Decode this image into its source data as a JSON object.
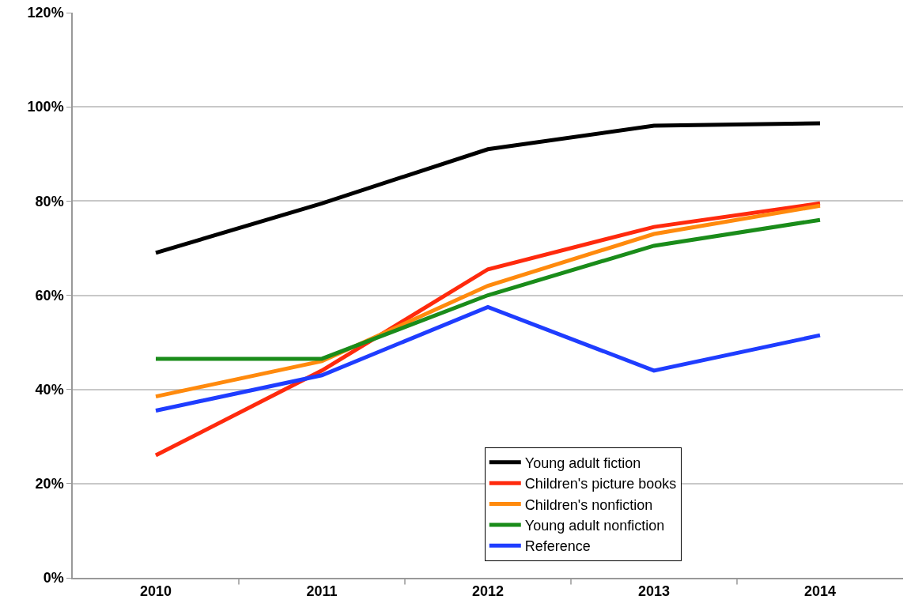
{
  "chart_data": {
    "type": "line",
    "categories": [
      "2010",
      "2011",
      "2012",
      "2013",
      "2014"
    ],
    "series": [
      {
        "name": "Young adult fiction",
        "color": "#000000",
        "values": [
          69,
          79.5,
          91,
          96,
          96.5
        ]
      },
      {
        "name": "Children's picture books",
        "color": "#ff2a0d",
        "values": [
          26,
          44,
          65.5,
          74.5,
          79.5
        ]
      },
      {
        "name": "Children's nonfiction",
        "color": "#ff8a0d",
        "values": [
          38.5,
          46,
          62,
          73,
          79
        ]
      },
      {
        "name": "Young adult nonfiction",
        "color": "#1a8c1a",
        "values": [
          46.5,
          46.5,
          60,
          70.5,
          76
        ]
      },
      {
        "name": "Reference",
        "color": "#1f3dff",
        "values": [
          35.5,
          43,
          57.5,
          44,
          51.5
        ]
      }
    ],
    "ylim": [
      0,
      120
    ],
    "yticks": [
      {
        "value": 0,
        "label": "0%"
      },
      {
        "value": 20,
        "label": "20%"
      },
      {
        "value": 40,
        "label": "40%"
      },
      {
        "value": 60,
        "label": "60%"
      },
      {
        "value": 80,
        "label": "80%"
      },
      {
        "value": 100,
        "label": "100%"
      },
      {
        "value": 120,
        "label": "120%"
      }
    ],
    "grid": "y",
    "legend": "bottom right",
    "marker": "none",
    "line_style": "solid"
  }
}
